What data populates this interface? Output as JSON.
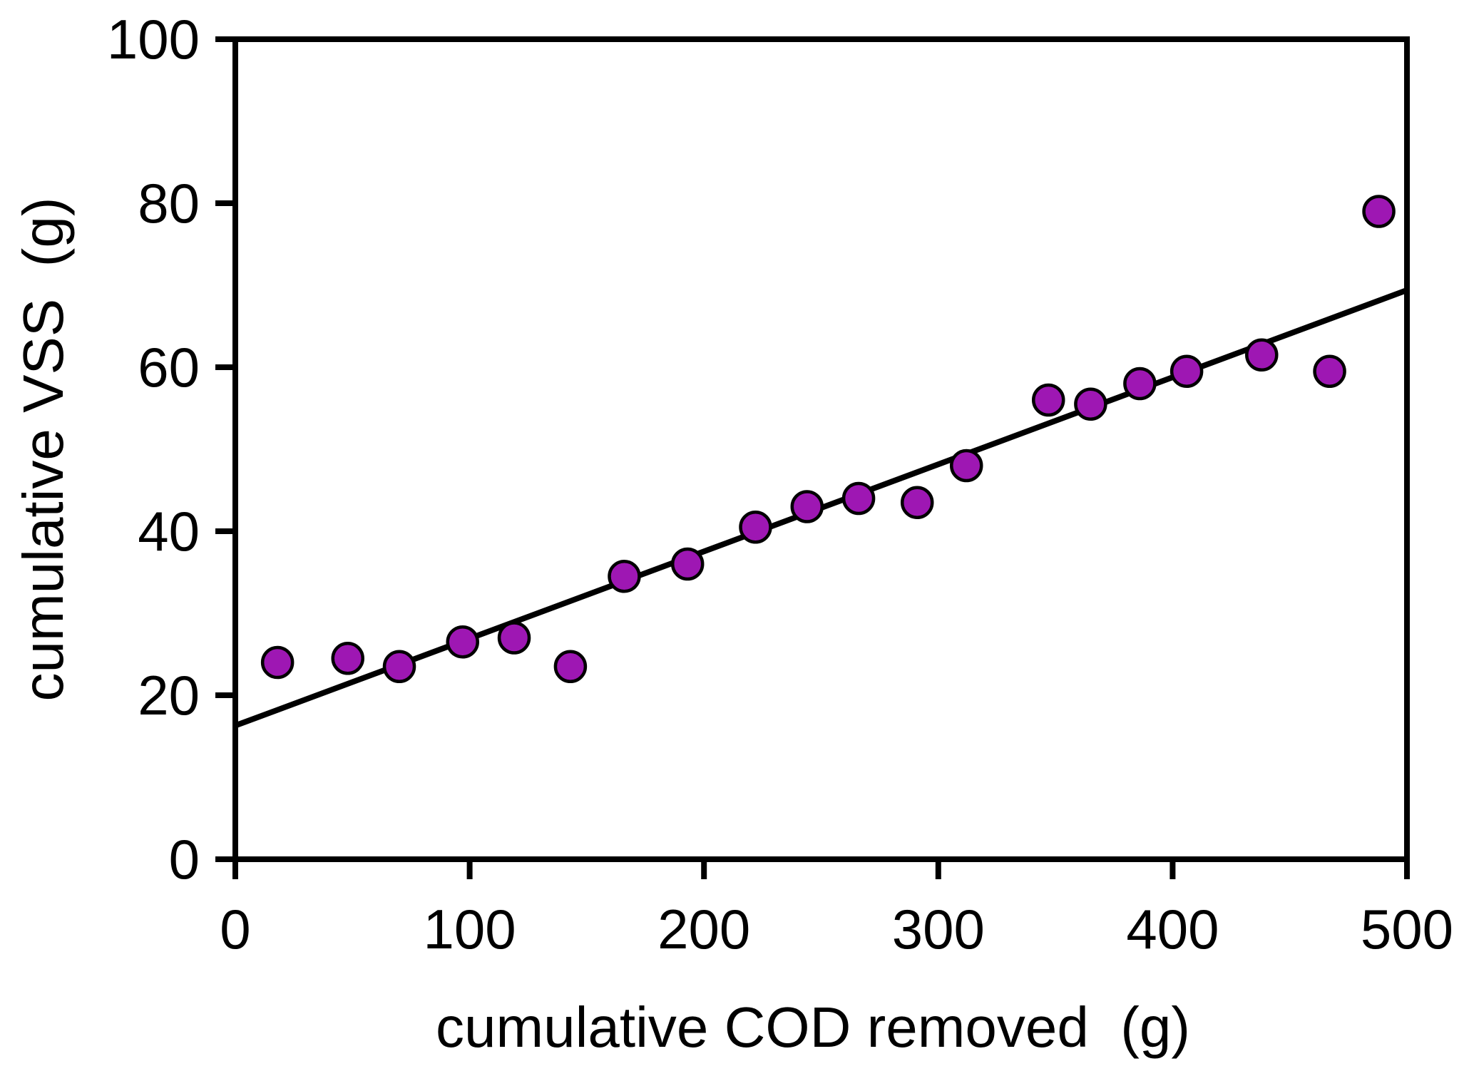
{
  "chart_data": {
    "type": "scatter",
    "title": "",
    "xlabel": "cumulative COD removed  (g)",
    "ylabel": "cumulative VSS  (g)",
    "xlim": [
      0,
      500
    ],
    "ylim": [
      0,
      100
    ],
    "xticks": [
      0,
      100,
      200,
      300,
      400,
      500
    ],
    "yticks": [
      0,
      20,
      40,
      60,
      80,
      100
    ],
    "grid": false,
    "legend": null,
    "frame": true,
    "series": [
      {
        "name": "cumulative VSS vs cumulative COD removed",
        "marker": "circle",
        "points": [
          [
            18,
            24
          ],
          [
            48,
            24.5
          ],
          [
            70,
            23.5
          ],
          [
            97,
            26.5
          ],
          [
            119,
            27
          ],
          [
            143,
            23.5
          ],
          [
            166,
            34.5
          ],
          [
            193,
            36
          ],
          [
            222,
            40.5
          ],
          [
            244,
            43
          ],
          [
            266,
            44
          ],
          [
            291,
            43.5
          ],
          [
            312,
            48
          ],
          [
            347,
            56
          ],
          [
            365,
            55.5
          ],
          [
            386,
            58
          ],
          [
            406,
            59.5
          ],
          [
            438,
            61.5
          ],
          [
            467,
            59.5
          ],
          [
            488,
            79
          ]
        ]
      }
    ],
    "trendline": {
      "x1": 0,
      "y1": 16.3,
      "x2": 500,
      "y2": 69.4
    },
    "colors": {
      "marker_fill": "#9E17B3",
      "marker_outline": "#000000",
      "line": "#000000",
      "axis": "#000000",
      "background": "#ffffff"
    }
  }
}
